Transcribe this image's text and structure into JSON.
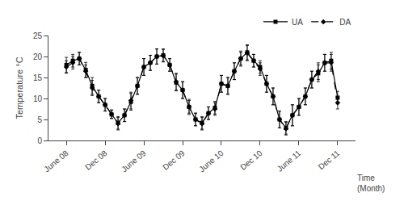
{
  "chart_data": {
    "type": "line",
    "categories": [
      "June 08",
      null,
      null,
      null,
      null,
      null,
      "Dec 08",
      null,
      null,
      null,
      null,
      null,
      "June 09",
      null,
      null,
      null,
      null,
      null,
      "Dec 09",
      null,
      null,
      null,
      null,
      null,
      "June 10",
      null,
      null,
      null,
      null,
      null,
      "Dec 10",
      null,
      null,
      null,
      null,
      null,
      "June 11",
      null,
      null,
      null,
      null,
      null,
      "Dec 11"
    ],
    "series": [
      {
        "name": "UA",
        "color": "black",
        "marker": "square",
        "line_style": "solid",
        "values": [
          18.0,
          19.0,
          19.5,
          16.8,
          13.0,
          10.5,
          8.5,
          6.2,
          4.2,
          6.0,
          9.2,
          13.0,
          17.5,
          18.5,
          20.0,
          20.3,
          18.0,
          13.8,
          12.0,
          8.0,
          5.0,
          4.2,
          6.5,
          7.8,
          13.5,
          13.0,
          16.5,
          19.5,
          21.0,
          19.0,
          17.5,
          13.5,
          10.5,
          5.0,
          3.0,
          6.0,
          8.0,
          10.5,
          14.5,
          16.0,
          18.5,
          19.0,
          10.2
        ],
        "errors": [
          1.8,
          1.5,
          1.5,
          1.8,
          2.0,
          1.5,
          1.5,
          1.0,
          1.5,
          1.5,
          2.0,
          2.0,
          2.0,
          1.8,
          1.8,
          1.5,
          1.5,
          2.0,
          2.0,
          1.8,
          1.5,
          1.5,
          1.5,
          1.5,
          2.0,
          2.0,
          2.0,
          1.8,
          1.8,
          1.5,
          1.5,
          2.0,
          2.0,
          2.0,
          1.5,
          2.5,
          2.0,
          2.0,
          2.0,
          2.0,
          2.0,
          2.0,
          1.5
        ]
      },
      {
        "name": "DA",
        "color": "black",
        "marker": "diamond",
        "line_style": "dashed",
        "values": [
          17.5,
          18.5,
          19.5,
          16.5,
          12.5,
          10.5,
          8.5,
          6.3,
          4.0,
          6.0,
          9.5,
          13.0,
          17.5,
          18.5,
          20.0,
          20.2,
          18.0,
          14.0,
          12.0,
          8.0,
          5.0,
          4.0,
          6.5,
          7.5,
          13.5,
          13.0,
          16.5,
          19.5,
          20.8,
          19.0,
          17.0,
          13.5,
          10.5,
          5.0,
          2.8,
          6.0,
          8.0,
          10.5,
          14.5,
          16.5,
          18.5,
          18.5,
          9.0
        ],
        "errors": [
          1.5,
          1.5,
          1.5,
          1.5,
          1.8,
          1.5,
          1.5,
          1.0,
          1.5,
          1.5,
          2.0,
          2.0,
          2.0,
          1.8,
          1.8,
          1.5,
          1.5,
          2.0,
          2.0,
          1.5,
          1.5,
          1.5,
          1.5,
          1.5,
          2.0,
          2.0,
          2.0,
          1.5,
          1.8,
          1.5,
          1.5,
          2.0,
          2.0,
          2.0,
          1.5,
          2.5,
          2.0,
          2.0,
          2.0,
          2.0,
          2.0,
          2.0,
          1.5
        ]
      }
    ],
    "ylabel": "Temperature °C",
    "xlabel": "Time\n(Month)",
    "ylim": [
      0,
      25
    ],
    "yticks": [
      0,
      5,
      10,
      15,
      20,
      25
    ],
    "grid": false,
    "legend": "upper right"
  }
}
